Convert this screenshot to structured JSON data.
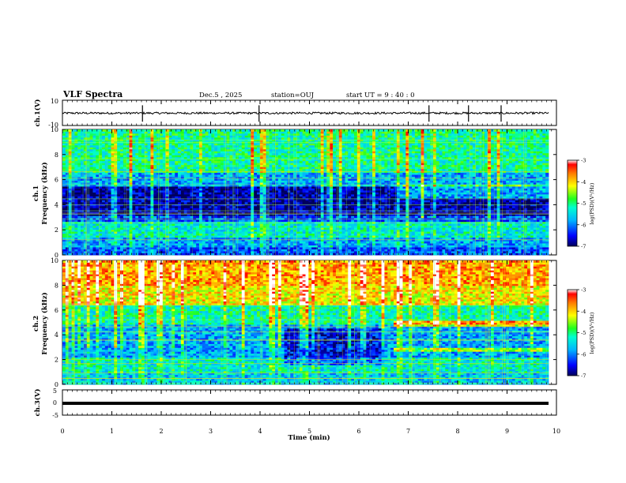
{
  "header": {
    "title": "VLF Spectra",
    "date": "Dec.5 , 2025",
    "station": "station=OUJ",
    "start": "start UT = 9 : 40 : 0"
  },
  "chart_data": {
    "type": "heatmap",
    "title": "VLF Spectra",
    "x_axis": {
      "label": "Time (min)",
      "range": [
        0,
        10
      ],
      "ticks": [
        "0",
        "1",
        "2",
        "3",
        "4",
        "5",
        "6",
        "7",
        "8",
        "9",
        "10"
      ]
    },
    "panels": [
      {
        "name": "ch.1 waveform",
        "type": "line",
        "ylabel": "ch.1(V)",
        "ylim": [
          -10,
          10
        ],
        "yticks": [
          "10",
          "-10"
        ],
        "baseline": 0,
        "spikes_min": [
          1.62,
          3.98,
          7.42,
          8.22,
          8.88
        ]
      },
      {
        "name": "ch.1 spectrogram",
        "type": "heatmap",
        "ylabel_channel": "ch.1",
        "ylabel": "Frequency (kHz)",
        "ylim": [
          0,
          10
        ],
        "yticks": [
          "0",
          "2",
          "4",
          "6",
          "8",
          "10"
        ],
        "colorbar": {
          "label": "log(PSD)(V²/Hz)",
          "range": [
            -7,
            -3
          ],
          "ticks": [
            "-3",
            "-4",
            "-5",
            "-6",
            "-7"
          ]
        }
      },
      {
        "name": "ch.2 spectrogram",
        "type": "heatmap",
        "ylabel_channel": "ch.2",
        "ylabel": "Frequency (kHz)",
        "ylim": [
          0,
          10
        ],
        "yticks": [
          "0",
          "2",
          "4",
          "6",
          "8",
          "10"
        ],
        "colorbar": {
          "label": "log(PSD)(V²/Hz)",
          "range": [
            -7,
            -3
          ],
          "ticks": [
            "-3",
            "-4",
            "-5",
            "-6",
            "-7"
          ]
        }
      },
      {
        "name": "ch.3 waveform",
        "type": "line",
        "ylabel": "ch.3(V)",
        "ylim": [
          -5,
          5
        ],
        "yticks": [
          "5",
          "0",
          "-5"
        ],
        "value": -0.3
      }
    ],
    "data_end_min": 9.84,
    "grid": false
  }
}
